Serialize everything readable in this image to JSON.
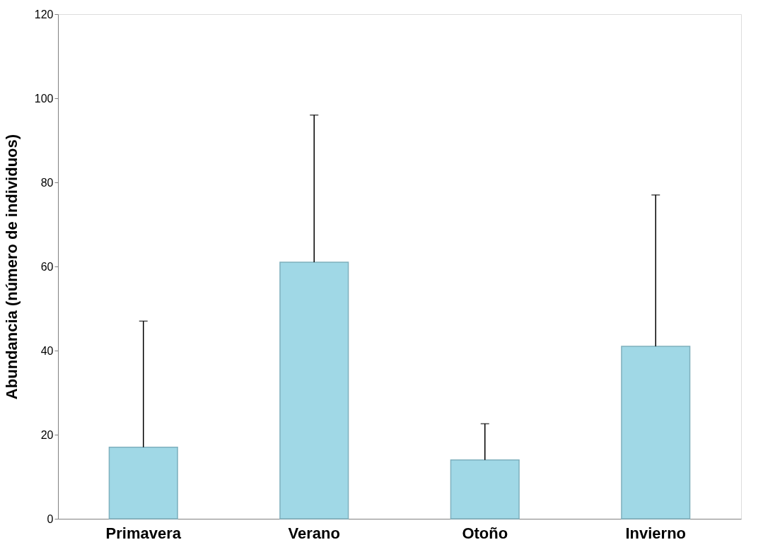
{
  "chart_data": {
    "type": "bar",
    "ylabel": "Abundancia (número de individuos)",
    "categories": [
      "Primavera",
      "Verano",
      "Otoño",
      "Invierno"
    ],
    "values": [
      17,
      61,
      14,
      41
    ],
    "errors": [
      [
        17,
        47
      ],
      [
        61,
        96
      ],
      [
        14,
        22.6
      ],
      [
        41,
        77
      ]
    ],
    "color": "#a0d8e6",
    "ylim": [
      0,
      120
    ],
    "yticks": [
      0,
      20,
      40,
      60,
      80,
      100,
      120
    ],
    "grid": false
  }
}
